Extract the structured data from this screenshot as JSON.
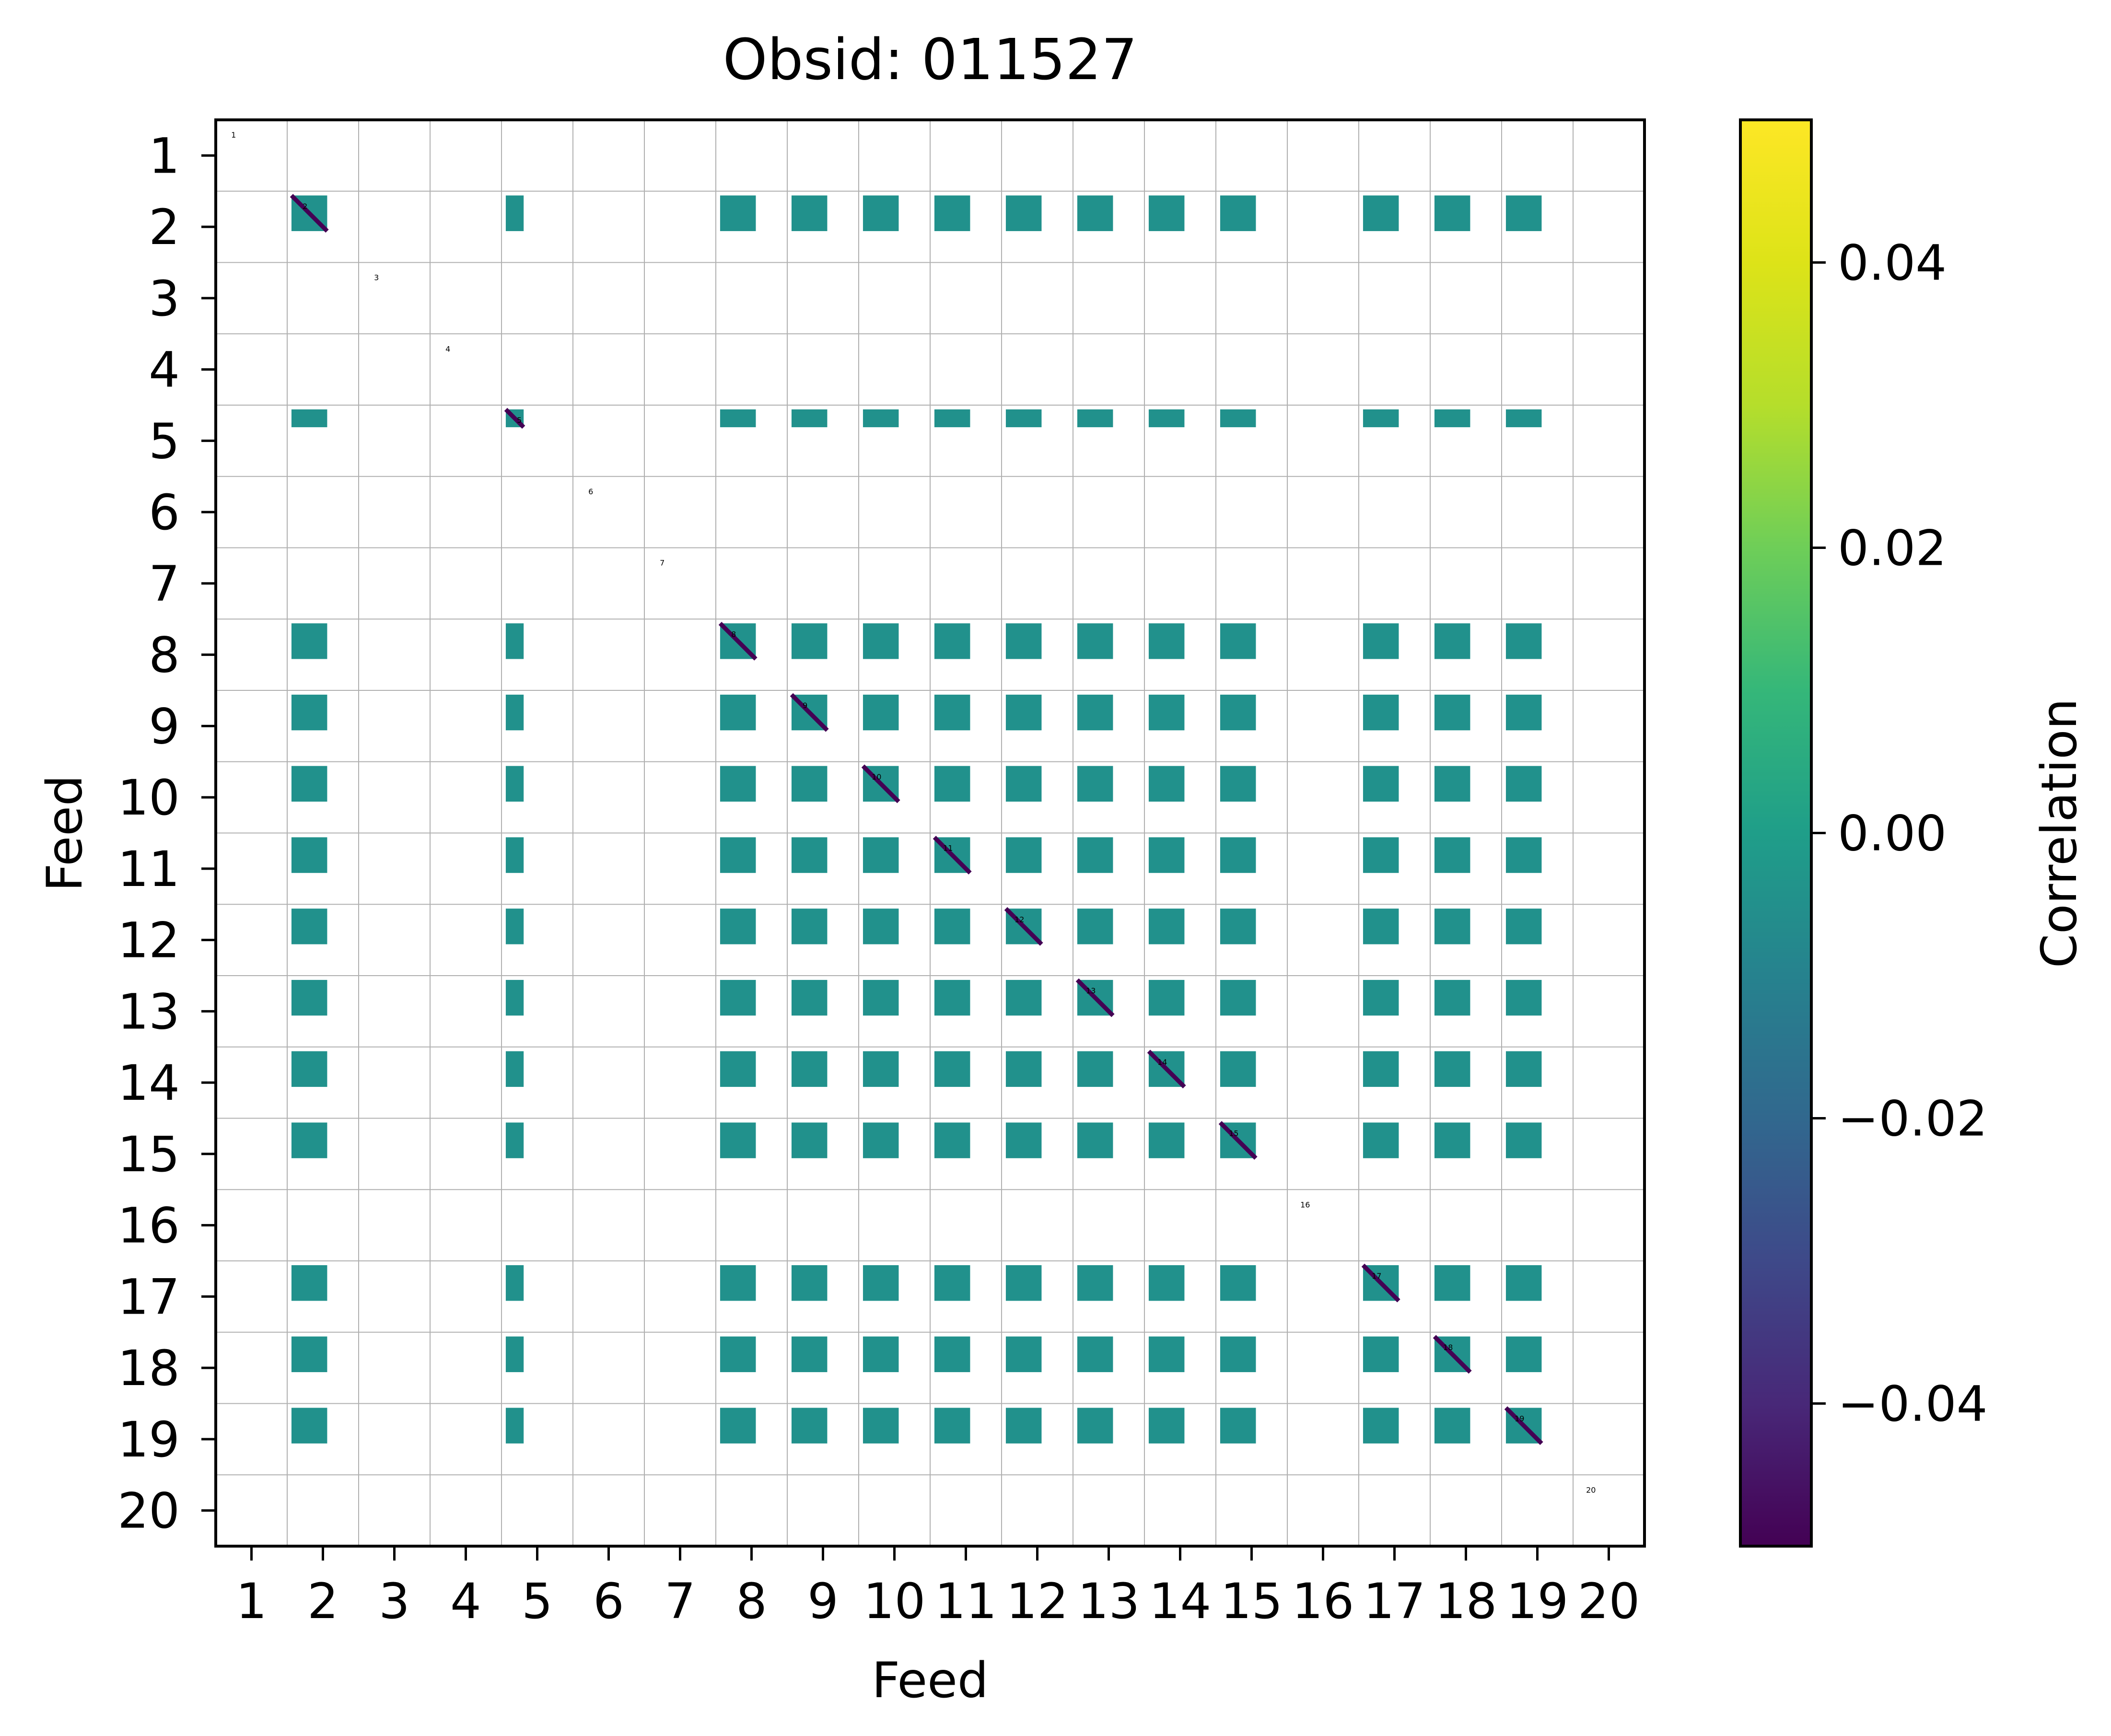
{
  "chart_data": {
    "type": "heatmap",
    "title": "Obsid: 011527",
    "xlabel": "Feed",
    "ylabel": "Feed",
    "feeds": [
      1,
      2,
      3,
      4,
      5,
      6,
      7,
      8,
      9,
      10,
      11,
      12,
      13,
      14,
      15,
      16,
      17,
      18,
      19,
      20
    ],
    "x_ticks": [
      "1",
      "2",
      "3",
      "4",
      "5",
      "6",
      "7",
      "8",
      "9",
      "10",
      "11",
      "12",
      "13",
      "14",
      "15",
      "16",
      "17",
      "18",
      "19",
      "20"
    ],
    "y_ticks": [
      "1",
      "2",
      "3",
      "4",
      "5",
      "6",
      "7",
      "8",
      "9",
      "10",
      "11",
      "12",
      "13",
      "14",
      "15",
      "16",
      "17",
      "18",
      "19",
      "20"
    ],
    "feed_annotations": [
      "1",
      "2",
      "3",
      "4",
      "5",
      "6",
      "7",
      "8",
      "9",
      "10",
      "11",
      "12",
      "13",
      "14",
      "15",
      "16",
      "17",
      "18",
      "19",
      "20"
    ],
    "active_feeds": [
      2,
      5,
      8,
      9,
      10,
      11,
      12,
      13,
      14,
      15,
      17,
      18,
      19
    ],
    "partial_feeds": [
      5
    ],
    "off_diagonal_value": 0.0,
    "diagonal_value": -0.045,
    "colorbar": {
      "label": "Correlation",
      "colormap": "viridis",
      "vmin": -0.05,
      "vmax": 0.05,
      "ticks": [
        "0.04",
        "0.02",
        "0.00",
        "−0.02",
        "−0.04"
      ],
      "tick_values": [
        0.04,
        0.02,
        0.0,
        -0.02,
        -0.04
      ]
    },
    "grid": true,
    "colors": {
      "cell": "#21918c",
      "diagonal": "#440154",
      "grid": "#b0b0b0"
    }
  }
}
